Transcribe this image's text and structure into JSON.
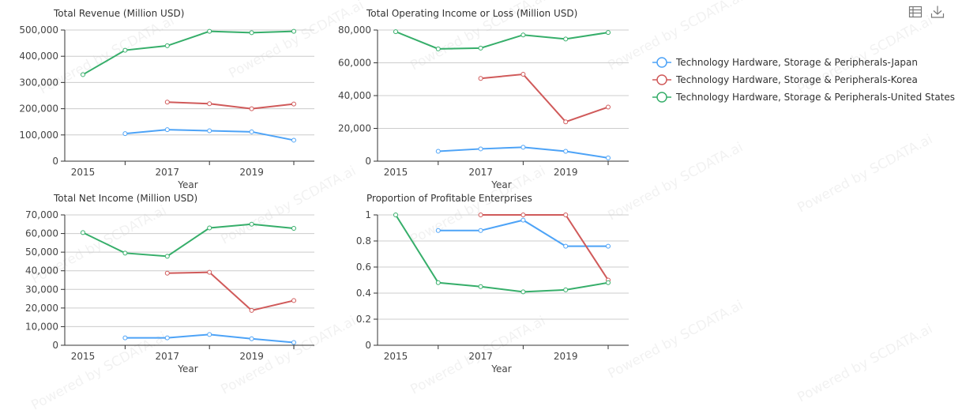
{
  "watermark": "Powered by SCDATA.ai",
  "toolbar": {
    "icons": [
      "data-view-icon",
      "download-icon"
    ]
  },
  "colors": {
    "Japan": "#4da3f7",
    "Korea": "#d05a5a",
    "United States": "#36ae6a"
  },
  "legend": {
    "placement": "right",
    "items": [
      {
        "label": "Technology Hardware, Storage & Peripherals-Japan",
        "color": "#4da3f7"
      },
      {
        "label": "Technology Hardware, Storage & Peripherals-Korea",
        "color": "#d05a5a"
      },
      {
        "label": "Technology Hardware, Storage & Peripherals-United States",
        "color": "#36ae6a"
      }
    ]
  },
  "chart_data": [
    {
      "type": "line",
      "title": "Total Revenue (Million USD)",
      "xlabel": "Year",
      "categories": [
        "2015",
        "2016",
        "2017",
        "2018",
        "2019",
        "2020"
      ],
      "xtick_labels": [
        "2015",
        "2017",
        "2019"
      ],
      "ylim": [
        0,
        500000
      ],
      "yticks": [
        "0",
        "100,000",
        "200,000",
        "300,000",
        "400,000",
        "500,000"
      ],
      "grid": true,
      "series": [
        {
          "name": "Technology Hardware, Storage & Peripherals-Japan",
          "values": [
            null,
            105000,
            120000,
            116000,
            112000,
            80000
          ]
        },
        {
          "name": "Technology Hardware, Storage & Peripherals-Korea",
          "values": [
            null,
            null,
            225000,
            219000,
            200000,
            218000
          ]
        },
        {
          "name": "Technology Hardware, Storage & Peripherals-United States",
          "values": [
            330000,
            423000,
            440000,
            495000,
            490000,
            495000
          ]
        }
      ]
    },
    {
      "type": "line",
      "title": "Total Operating Income or Loss (Million USD)",
      "xlabel": "Year",
      "categories": [
        "2015",
        "2016",
        "2017",
        "2018",
        "2019",
        "2020"
      ],
      "xtick_labels": [
        "2015",
        "2017",
        "2019"
      ],
      "ylim": [
        0,
        80000
      ],
      "yticks": [
        "0",
        "20,000",
        "40,000",
        "60,000",
        "80,000"
      ],
      "grid": true,
      "series": [
        {
          "name": "Technology Hardware, Storage & Peripherals-Japan",
          "values": [
            null,
            6000,
            7500,
            8500,
            6000,
            2000
          ]
        },
        {
          "name": "Technology Hardware, Storage & Peripherals-Korea",
          "values": [
            null,
            null,
            50500,
            53000,
            24000,
            33000
          ]
        },
        {
          "name": "Technology Hardware, Storage & Peripherals-United States",
          "values": [
            79000,
            68500,
            69000,
            77000,
            74500,
            78500
          ]
        }
      ]
    },
    {
      "type": "line",
      "title": "Total Net Income (Million USD)",
      "xlabel": "Year",
      "categories": [
        "2015",
        "2016",
        "2017",
        "2018",
        "2019",
        "2020"
      ],
      "xtick_labels": [
        "2015",
        "2017",
        "2019"
      ],
      "ylim": [
        0,
        70000
      ],
      "yticks": [
        "0",
        "10,000",
        "20,000",
        "30,000",
        "40,000",
        "50,000",
        "60,000",
        "70,000"
      ],
      "grid": true,
      "series": [
        {
          "name": "Technology Hardware, Storage & Peripherals-Japan",
          "values": [
            null,
            4000,
            4000,
            5800,
            3500,
            1500
          ]
        },
        {
          "name": "Technology Hardware, Storage & Peripherals-Korea",
          "values": [
            null,
            null,
            38700,
            39200,
            18700,
            24000
          ]
        },
        {
          "name": "Technology Hardware, Storage & Peripherals-United States",
          "values": [
            60500,
            49500,
            47800,
            63000,
            65000,
            62800
          ]
        }
      ]
    },
    {
      "type": "line",
      "title": "Proportion of Profitable Enterprises",
      "xlabel": "Year",
      "categories": [
        "2015",
        "2016",
        "2017",
        "2018",
        "2019",
        "2020"
      ],
      "xtick_labels": [
        "2015",
        "2017",
        "2019"
      ],
      "ylim": [
        0,
        1
      ],
      "yticks": [
        "0",
        "0.2",
        "0.4",
        "0.6",
        "0.8",
        "1"
      ],
      "grid": true,
      "series": [
        {
          "name": "Technology Hardware, Storage & Peripherals-Japan",
          "values": [
            null,
            0.88,
            0.88,
            0.96,
            0.76,
            0.76
          ]
        },
        {
          "name": "Technology Hardware, Storage & Peripherals-Korea",
          "values": [
            null,
            null,
            1,
            1,
            1,
            0.5
          ]
        },
        {
          "name": "Technology Hardware, Storage & Peripherals-United States",
          "values": [
            1,
            0.48,
            0.45,
            0.41,
            0.425,
            0.48
          ]
        }
      ]
    }
  ]
}
